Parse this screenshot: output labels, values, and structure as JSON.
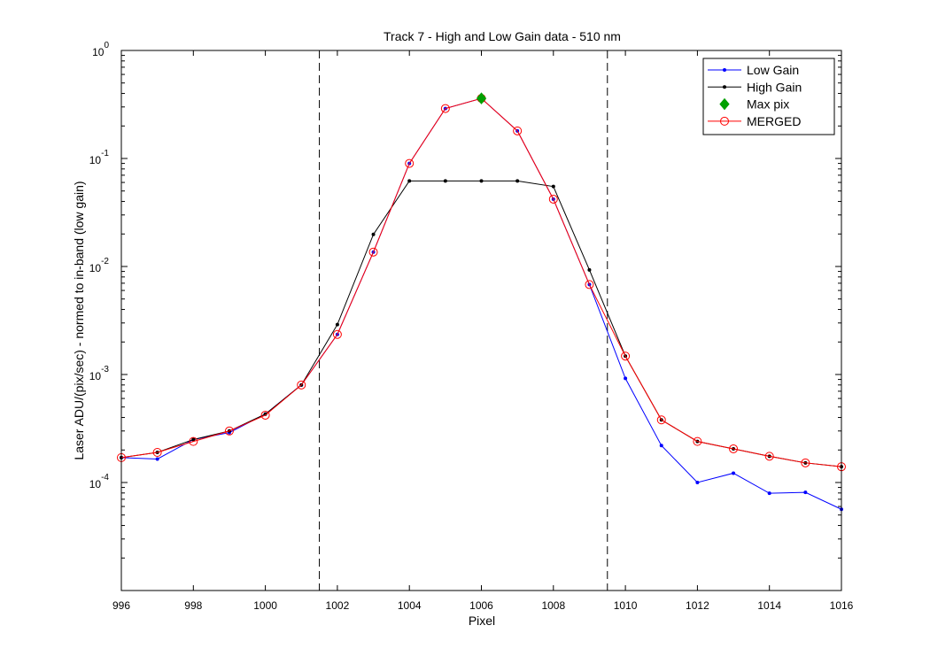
{
  "chart_data": {
    "type": "line",
    "title": "Track 7 - High and Low Gain data - 510 nm",
    "xlabel": "Pixel",
    "ylabel": "Laser ADU/(pix/sec) - normed to in-band (low gain)",
    "xlim": [
      996,
      1016
    ],
    "ylim": [
      1e-05,
      1
    ],
    "yscale": "log",
    "grid": false,
    "legend_position": "top-right",
    "x_ticks": [
      "996",
      "998",
      "1000",
      "1002",
      "1004",
      "1006",
      "1008",
      "1010",
      "1012",
      "1014",
      "1016"
    ],
    "y_ticks": [
      {
        "value": 0.0001,
        "base": "10",
        "exp": "-4"
      },
      {
        "value": 0.001,
        "base": "10",
        "exp": "-3"
      },
      {
        "value": 0.01,
        "base": "10",
        "exp": "-2"
      },
      {
        "value": 0.1,
        "base": "10",
        "exp": "-1"
      },
      {
        "value": 1,
        "base": "10",
        "exp": "0"
      }
    ],
    "vertical_lines": [
      1001.5,
      1009.5
    ],
    "series": [
      {
        "name": "Low Gain",
        "color": "#0000ff",
        "marker": "dot",
        "x": [
          996,
          997,
          998,
          999,
          1000,
          1001,
          1002,
          1003,
          1004,
          1005,
          1006,
          1007,
          1008,
          1009,
          1010,
          1011,
          1012,
          1013,
          1014,
          1015,
          1016
        ],
        "y": [
          0.00017,
          0.000165,
          0.00025,
          0.00029,
          0.00043,
          0.0008,
          0.00235,
          0.0136,
          0.09,
          0.29,
          0.36,
          0.18,
          0.042,
          0.0068,
          0.00092,
          0.00022,
          0.0001,
          0.000122,
          7.95e-05,
          8.1e-05,
          5.65e-05
        ]
      },
      {
        "name": "High Gain",
        "color": "#000000",
        "marker": "dot",
        "x": [
          996,
          997,
          998,
          999,
          1000,
          1001,
          1002,
          1003,
          1004,
          1005,
          1006,
          1007,
          1008,
          1009,
          1010,
          1011,
          1012,
          1013,
          1014,
          1015,
          1016
        ],
        "y": [
          0.00017,
          0.00019,
          0.00025,
          0.0003,
          0.00043,
          0.0008,
          0.0029,
          0.0198,
          0.062,
          0.062,
          0.062,
          0.062,
          0.055,
          0.0093,
          0.00148,
          0.00038,
          0.00024,
          0.000205,
          0.000175,
          0.000152,
          0.00014
        ]
      },
      {
        "name": "Max pix",
        "color": "#00a000",
        "marker": "diamond",
        "x": [
          1006
        ],
        "y": [
          0.36
        ]
      },
      {
        "name": "MERGED",
        "color": "#ff0000",
        "marker": "circle",
        "x": [
          996,
          997,
          998,
          999,
          1000,
          1001,
          1002,
          1003,
          1004,
          1005,
          1006,
          1007,
          1008,
          1009,
          1010,
          1011,
          1012,
          1013,
          1014,
          1015,
          1016
        ],
        "y": [
          0.00017,
          0.00019,
          0.00024,
          0.0003,
          0.00042,
          0.0008,
          0.00235,
          0.0136,
          0.09,
          0.29,
          0.36,
          0.18,
          0.042,
          0.0068,
          0.00148,
          0.00038,
          0.00024,
          0.000205,
          0.000175,
          0.000152,
          0.00014
        ]
      }
    ]
  }
}
